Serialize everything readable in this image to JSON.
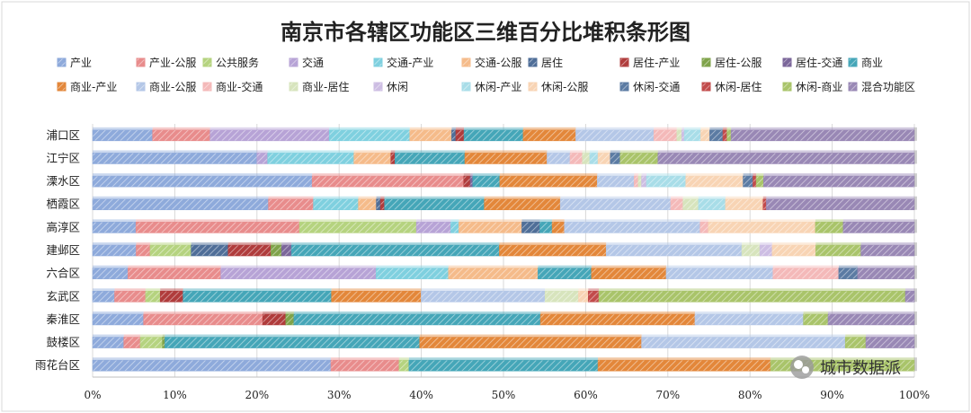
{
  "chart_data": {
    "type": "bar",
    "orientation": "horizontal",
    "stacked": "percent",
    "title": "南京市各辖区功能区三维百分比堆积条形图",
    "xlim": [
      0,
      100
    ],
    "xticks": [
      "0%",
      "10%",
      "20%",
      "30%",
      "40%",
      "50%",
      "60%",
      "70%",
      "80%",
      "90%",
      "100%"
    ],
    "grid": "vertical",
    "legend_position": "top",
    "categories": [
      "浦口区",
      "江宁区",
      "溧水区",
      "栖霞区",
      "高淳区",
      "建邺区",
      "六合区",
      "玄武区",
      "秦淮区",
      "鼓楼区",
      "雨花台区"
    ],
    "series": [
      {
        "name": "产业",
        "color": "#8eaadb",
        "values": [
          7.3,
          20,
          26.8,
          21.5,
          5.3,
          5.3,
          4.3,
          2.7,
          6.2,
          3.8,
          29
        ]
      },
      {
        "name": "产业-公服",
        "color": "#e88c8c",
        "values": [
          7.0,
          0,
          18.5,
          5.5,
          20,
          1.7,
          11.3,
          3.8,
          14.5,
          2,
          8.3
        ]
      },
      {
        "name": "公共服务",
        "color": "#b5d37f",
        "values": [
          0,
          0,
          0,
          0,
          14.3,
          5,
          0,
          1.8,
          0,
          2.7,
          1.2
        ]
      },
      {
        "name": "交通",
        "color": "#b7a3d6",
        "values": [
          14.5,
          1.3,
          0,
          0,
          4.2,
          0,
          18.9,
          0,
          0,
          0,
          0
        ]
      },
      {
        "name": "交通-产业",
        "color": "#7fd0df",
        "values": [
          9.8,
          10.5,
          0,
          5.5,
          1.0,
          0,
          8.8,
          0,
          0,
          0,
          0
        ]
      },
      {
        "name": "交通-公服",
        "color": "#f5bb8a",
        "values": [
          5.1,
          4.5,
          0,
          2.2,
          7.7,
          0,
          10.9,
          0,
          0,
          0,
          0
        ]
      },
      {
        "name": "居住",
        "color": "#4f6e98",
        "values": [
          0.5,
          0,
          0,
          0.5,
          2.2,
          4.5,
          0,
          0,
          0,
          0,
          0
        ]
      },
      {
        "name": "居住-产业",
        "color": "#b03c3c",
        "values": [
          1.0,
          0.5,
          0.8,
          0.5,
          0,
          5.2,
          0,
          2.8,
          2.8,
          0,
          0
        ]
      },
      {
        "name": "居住-公服",
        "color": "#7fa34a",
        "values": [
          0,
          0,
          0,
          0,
          0,
          1.3,
          0,
          0,
          1.0,
          0.3,
          0
        ]
      },
      {
        "name": "居住-交通",
        "color": "#7b669a",
        "values": [
          0,
          0,
          0.3,
          0,
          0,
          1.2,
          0,
          0,
          0,
          0,
          0
        ]
      },
      {
        "name": "商业",
        "color": "#45a6b8",
        "values": [
          7.2,
          8.5,
          3.3,
          12.2,
          1.5,
          25.3,
          6.5,
          18.2,
          30.0,
          31,
          23
        ]
      },
      {
        "name": "商业-产业",
        "color": "#e3873a",
        "values": [
          6.4,
          10,
          11.9,
          9.3,
          1.5,
          13,
          9.1,
          11.0,
          18.8,
          27,
          21
        ]
      },
      {
        "name": "商业-公服",
        "color": "#b4c7e7",
        "values": [
          9.5,
          2.8,
          4.5,
          13.5,
          16.6,
          16.5,
          13,
          15.2,
          13.2,
          24.8,
          0
        ]
      },
      {
        "name": "商业-交通",
        "color": "#f4b9b9",
        "values": [
          2.8,
          1.5,
          0.5,
          1.5,
          1.0,
          0,
          8.0,
          0,
          0,
          0,
          0
        ]
      },
      {
        "name": "商业-居住",
        "color": "#d7e4bd",
        "values": [
          0.6,
          0.9,
          0.4,
          1.9,
          0,
          2.2,
          0,
          4.1,
          0,
          0,
          0
        ]
      },
      {
        "name": "休闲",
        "color": "#cdbde3",
        "values": [
          0.3,
          0,
          0.6,
          0,
          0,
          1.5,
          0,
          0,
          0,
          0,
          0
        ]
      },
      {
        "name": "休闲-产业",
        "color": "#a8dde8",
        "values": [
          2.0,
          1.0,
          4.8,
          3.3,
          0,
          0,
          0,
          0,
          0,
          0,
          0
        ]
      },
      {
        "name": "休闲-公服",
        "color": "#f8d4b4",
        "values": [
          1.1,
          1.5,
          7.0,
          4.6,
          13.1,
          5.3,
          0,
          1.2,
          0,
          0,
          0
        ]
      },
      {
        "name": "休闲-交通",
        "color": "#5b7ba3",
        "values": [
          1.6,
          1.2,
          1.2,
          0,
          0,
          0,
          2.3,
          0,
          0,
          0,
          0
        ]
      },
      {
        "name": "休闲-居住",
        "color": "#c24b4b",
        "values": [
          0.5,
          0,
          0.4,
          0.4,
          0,
          0,
          0,
          1.3,
          0,
          0,
          0
        ]
      },
      {
        "name": "休闲-商业",
        "color": "#a9c46a",
        "values": [
          0.5,
          4.6,
          0.9,
          0,
          3.4,
          5.5,
          0,
          37.6,
          3.0,
          2.5,
          17.5
        ]
      },
      {
        "name": "混合功能区",
        "color": "#9988b5",
        "values": [
          22.3,
          31.2,
          18.4,
          18.1,
          8.7,
          6.5,
          6.9,
          1.1,
          10.5,
          5.9,
          0
        ]
      }
    ]
  },
  "watermark": {
    "text": "城市数据派"
  }
}
